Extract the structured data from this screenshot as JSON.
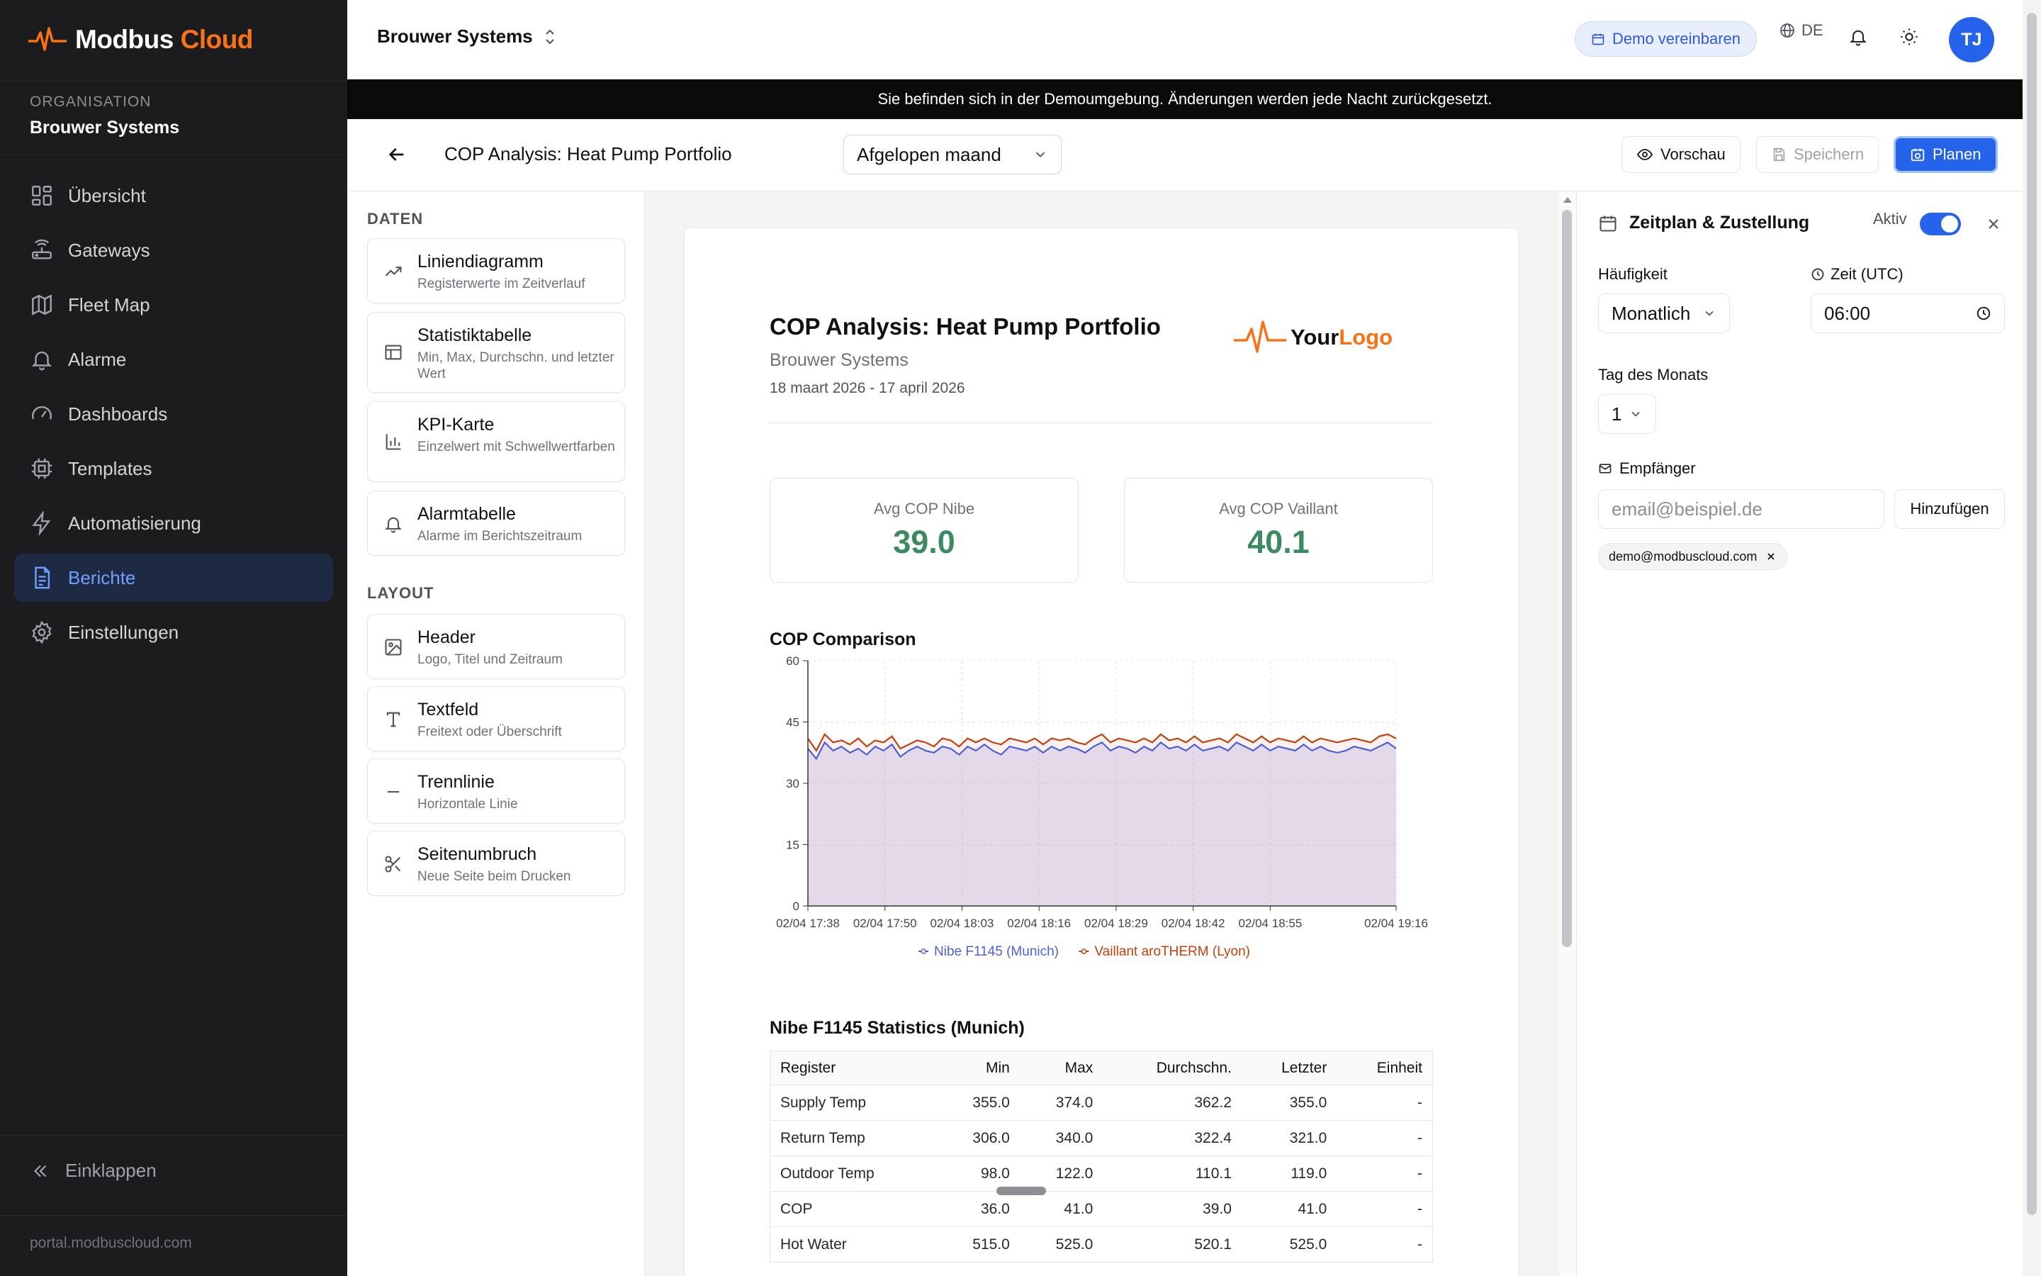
{
  "app": {
    "name_part1": "Modbus",
    "name_part2": "Cloud"
  },
  "sidebar": {
    "org_label": "ORGANISATION",
    "org_name": "Brouwer Systems",
    "items": [
      {
        "label": "Übersicht",
        "icon": "grid-icon"
      },
      {
        "label": "Gateways",
        "icon": "router-icon"
      },
      {
        "label": "Fleet Map",
        "icon": "map-icon"
      },
      {
        "label": "Alarme",
        "icon": "bell-icon"
      },
      {
        "label": "Dashboards",
        "icon": "gauge-icon"
      },
      {
        "label": "Templates",
        "icon": "cpu-icon"
      },
      {
        "label": "Automatisierung",
        "icon": "bolt-icon"
      },
      {
        "label": "Berichte",
        "icon": "file-report-icon",
        "active": true
      },
      {
        "label": "Einstellungen",
        "icon": "gear-icon"
      }
    ],
    "collapse_label": "Einklappen",
    "portal": "portal.modbuscloud.com"
  },
  "topbar": {
    "org": "Brouwer Systems",
    "demo_button": "Demo vereinbaren",
    "lang": "DE",
    "avatar": "TJ"
  },
  "banner": "Sie befinden sich in der Demoumgebung. Änderungen werden jede Nacht zurückgesetzt.",
  "editor": {
    "title": "COP Analysis: Heat Pump Portfolio",
    "period": "Afgelopen maand",
    "preview": "Vorschau",
    "save": "Speichern",
    "plan": "Planen"
  },
  "palette": {
    "data_head": "DATEN",
    "data_items": [
      {
        "title": "Liniendiagramm",
        "sub": "Registerwerte im Zeitverlauf",
        "icon": "trend-line-icon"
      },
      {
        "title": "Statistiktabelle",
        "sub": "Min, Max, Durchschn. und letzter Wert",
        "icon": "table-icon"
      },
      {
        "title": "KPI-Karte",
        "sub": "Einzelwert mit Schwellwertfarben",
        "icon": "bar-chart-icon"
      },
      {
        "title": "Alarmtabelle",
        "sub": "Alarme im Berichtszeitraum",
        "icon": "bell-icon"
      }
    ],
    "layout_head": "LAYOUT",
    "layout_items": [
      {
        "title": "Header",
        "sub": "Logo, Titel und Zeitraum",
        "icon": "image-icon"
      },
      {
        "title": "Textfeld",
        "sub": "Freitext oder Überschrift",
        "icon": "text-icon"
      },
      {
        "title": "Trennlinie",
        "sub": "Horizontale Linie",
        "icon": "minus-icon"
      },
      {
        "title": "Seitenumbruch",
        "sub": "Neue Seite beim Drucken",
        "icon": "scissors-icon"
      }
    ]
  },
  "report": {
    "title": "COP Analysis: Heat Pump Portfolio",
    "org": "Brouwer Systems",
    "range": "18 maart 2026 - 17 april 2026",
    "logo_part1": "Your",
    "logo_part2": "Logo",
    "kpis": [
      {
        "label": "Avg COP Nibe",
        "value": "39.0"
      },
      {
        "label": "Avg COP Vaillant",
        "value": "40.1"
      }
    ],
    "stats_title": "Nibe F1145 Statistics (Munich)",
    "stats_headers": [
      "Register",
      "Min",
      "Max",
      "Durchschn.",
      "Letzter",
      "Einheit"
    ],
    "stats_rows": [
      [
        "Supply Temp",
        "355.0",
        "374.0",
        "362.2",
        "355.0",
        "-"
      ],
      [
        "Return Temp",
        "306.0",
        "340.0",
        "322.4",
        "321.0",
        "-"
      ],
      [
        "Outdoor Temp",
        "98.0",
        "122.0",
        "110.1",
        "119.0",
        "-"
      ],
      [
        "COP",
        "36.0",
        "41.0",
        "39.0",
        "41.0",
        "-"
      ],
      [
        "Hot Water",
        "515.0",
        "525.0",
        "520.1",
        "525.0",
        "-"
      ]
    ]
  },
  "chart_data": {
    "type": "line",
    "title": "COP Comparison",
    "ylim": [
      0,
      60
    ],
    "yticks": [
      0,
      15,
      30,
      45,
      60
    ],
    "xtick_labels": [
      "02/04 17:38",
      "02/04 17:50",
      "02/04 18:03",
      "02/04 18:16",
      "02/04 18:29",
      "02/04 18:42",
      "02/04 18:55",
      "02/04 19:16"
    ],
    "grid": true,
    "legend_position": "bottom",
    "series": [
      {
        "name": "Nibe F1145 (Munich)",
        "color": "#4f5fd6",
        "values": [
          38.5,
          36,
          40,
          38,
          39,
          37.5,
          38.5,
          37,
          39,
          38,
          39.5,
          36.5,
          38,
          39,
          38,
          37.5,
          39,
          38.5,
          37,
          39,
          38,
          39.5,
          38,
          37,
          39,
          38.5,
          38,
          39,
          37.5,
          39,
          38,
          39,
          38.5,
          37.5,
          39,
          40,
          38,
          39,
          38.5,
          37.5,
          39,
          38,
          40,
          38.5,
          39,
          38,
          39.5,
          38,
          38.5,
          39,
          38,
          40,
          39,
          38,
          39.5,
          38,
          39,
          38.5,
          38,
          39.5,
          38,
          39,
          38,
          37.5,
          38,
          39,
          38.5,
          38,
          39,
          40,
          38.5
        ]
      },
      {
        "name": "Vaillant aroTHERM (Lyon)",
        "color": "#c2410c",
        "values": [
          41,
          38,
          42,
          40,
          40.5,
          39.5,
          41,
          39,
          40.5,
          40,
          41.5,
          38.5,
          39.5,
          40.5,
          40,
          39,
          41,
          40.5,
          39,
          41,
          40,
          41,
          40,
          39.5,
          41,
          40.5,
          40,
          41,
          39.5,
          41,
          40.5,
          41,
          40,
          39.5,
          41,
          42,
          40,
          41,
          40.5,
          40,
          41,
          40,
          42,
          40.5,
          41,
          40,
          41.5,
          40,
          40.5,
          41,
          40,
          42,
          41,
          40,
          41.5,
          40,
          41,
          40.5,
          40,
          41.5,
          40,
          41,
          40.5,
          40,
          40.5,
          41,
          40.5,
          40,
          41.5,
          42,
          41
        ]
      }
    ]
  },
  "schedule": {
    "title": "Zeitplan & Zustellung",
    "active_label": "Aktiv",
    "frequency_label": "Häufigkeit",
    "frequency": "Monatlich",
    "time_label": "Zeit (UTC)",
    "time": "06:00",
    "day_label": "Tag des Monats",
    "day": "1",
    "recipients_label": "Empfänger",
    "email_placeholder": "email@beispiel.de",
    "add_button": "Hinzufügen",
    "recipient": "demo@modbuscloud.com"
  }
}
